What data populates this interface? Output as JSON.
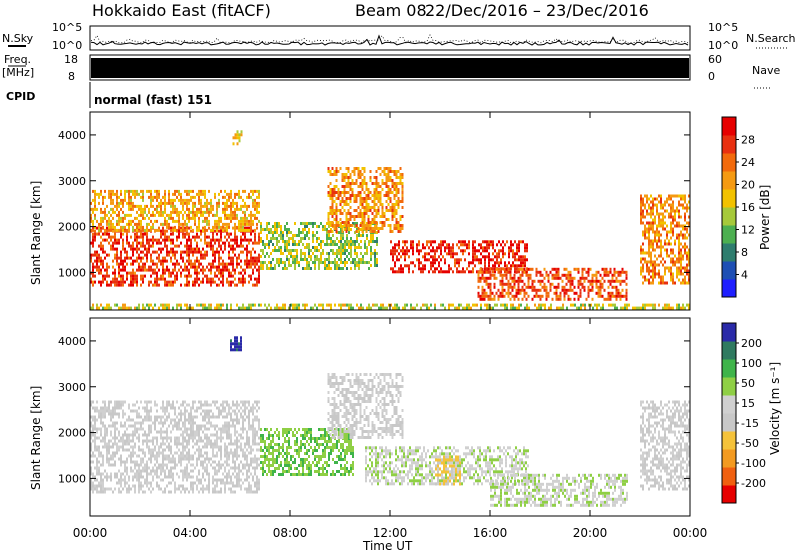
{
  "header": {
    "station": "Hokkaido East (fitACF)",
    "beam": "Beam 08",
    "date_range": "22/Dec/2016 – 23/Dec/2016"
  },
  "noise_panel": {
    "left_label": "N.Sky",
    "right_label": "N.Search",
    "left_ticks": [
      "10^5",
      "10^0"
    ],
    "right_ticks": [
      "10^5",
      "10^0"
    ]
  },
  "freq_panel": {
    "left_label_1": "Freq.",
    "left_label_2": "[MHz]",
    "left_ticks": [
      "18",
      "8"
    ],
    "right_label": "Nave",
    "right_ticks": [
      "60",
      "0"
    ]
  },
  "cpid_panel": {
    "label": "CPID",
    "mode": "normal (fast) 151"
  },
  "colors": {
    "power_scale": [
      "#1f1fff",
      "#1e4fb4",
      "#2e7d6e",
      "#4caf50",
      "#a6c93a",
      "#f2c200",
      "#f59a12",
      "#f26a0c",
      "#e83010",
      "#e60000"
    ],
    "velocity_scale": [
      "#e60000",
      "#f06010",
      "#f39a20",
      "#f4c23a",
      "#c8c8c8",
      "#d0d0d0",
      "#8fcf45",
      "#3fb44a",
      "#2f7a60",
      "#2a2aa8"
    ]
  },
  "chart_data": [
    {
      "type": "heatmap",
      "name": "power",
      "xlabel": "",
      "ylabel": "Slant Range [km]",
      "x_ticks": [
        "00:00",
        "04:00",
        "08:00",
        "12:00",
        "16:00",
        "20:00",
        "00:00"
      ],
      "x_range_hours": [
        0,
        24
      ],
      "y_ticks": [
        1000,
        2000,
        3000,
        4000
      ],
      "y_range_km": [
        180,
        4500
      ],
      "colorbar": {
        "label": "Power [dB]",
        "ticks": [
          4,
          8,
          12,
          16,
          20,
          24,
          28
        ],
        "range": [
          0,
          32
        ]
      },
      "echo_regions": [
        {
          "t_start": 0.0,
          "t_end": 6.8,
          "r_min": 700,
          "r_max": 2000,
          "typical_value": 27
        },
        {
          "t_start": 0.0,
          "t_end": 6.8,
          "r_min": 1900,
          "r_max": 2800,
          "typical_value": 20
        },
        {
          "t_start": 6.8,
          "t_end": 11.5,
          "r_min": 1100,
          "r_max": 2100,
          "typical_value": 14
        },
        {
          "t_start": 9.5,
          "t_end": 12.5,
          "r_min": 1900,
          "r_max": 3300,
          "typical_value": 22
        },
        {
          "t_start": 12.0,
          "t_end": 17.5,
          "r_min": 1000,
          "r_max": 1700,
          "typical_value": 29
        },
        {
          "t_start": 15.5,
          "t_end": 21.5,
          "r_min": 400,
          "r_max": 1100,
          "typical_value": 26
        },
        {
          "t_start": 22.0,
          "t_end": 24.0,
          "r_min": 800,
          "r_max": 2700,
          "typical_value": 22
        },
        {
          "t_start": 0.0,
          "t_end": 24.0,
          "r_min": 250,
          "r_max": 320,
          "typical_value": 16
        },
        {
          "t_start": 5.7,
          "t_end": 6.1,
          "r_min": 3800,
          "r_max": 4100,
          "typical_value": 18
        }
      ]
    },
    {
      "type": "heatmap",
      "name": "velocity",
      "xlabel": "Time UT",
      "ylabel": "Slant Range [km]",
      "x_ticks": [
        "00:00",
        "04:00",
        "08:00",
        "12:00",
        "16:00",
        "20:00",
        "00:00"
      ],
      "x_range_hours": [
        0,
        24
      ],
      "y_ticks": [
        1000,
        2000,
        3000,
        4000
      ],
      "y_range_km": [
        180,
        4500
      ],
      "colorbar": {
        "label": "Velocity [m s⁻¹]",
        "ticks": [
          200,
          100,
          50,
          15,
          -15,
          -50,
          -100,
          -200
        ],
        "range": [
          -250,
          250
        ]
      },
      "echo_regions": [
        {
          "t_start": 0.0,
          "t_end": 6.8,
          "r_min": 700,
          "r_max": 2700,
          "typical_value": 0
        },
        {
          "t_start": 6.8,
          "t_end": 10.5,
          "r_min": 1100,
          "r_max": 2100,
          "typical_value": 90
        },
        {
          "t_start": 9.5,
          "t_end": 12.5,
          "r_min": 1900,
          "r_max": 3300,
          "typical_value": 0
        },
        {
          "t_start": 11.0,
          "t_end": 17.5,
          "r_min": 900,
          "r_max": 1700,
          "typical_value": 40
        },
        {
          "t_start": 16.0,
          "t_end": 21.5,
          "r_min": 400,
          "r_max": 1100,
          "typical_value": 40
        },
        {
          "t_start": 13.8,
          "t_end": 14.8,
          "r_min": 900,
          "r_max": 1500,
          "typical_value": -60
        },
        {
          "t_start": 22.0,
          "t_end": 24.0,
          "r_min": 800,
          "r_max": 2700,
          "typical_value": 0
        },
        {
          "t_start": 5.6,
          "t_end": 6.0,
          "r_min": 3800,
          "r_max": 4100,
          "typical_value": 220
        }
      ]
    }
  ]
}
